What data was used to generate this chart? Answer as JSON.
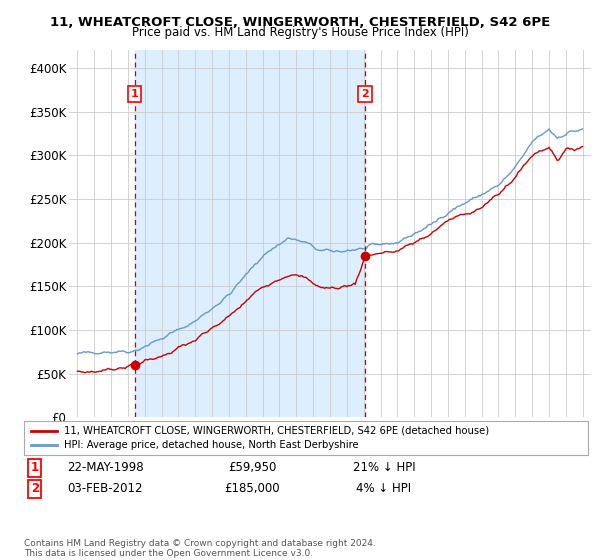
{
  "title_line1": "11, WHEATCROFT CLOSE, WINGERWORTH, CHESTERFIELD, S42 6PE",
  "title_line2": "Price paid vs. HM Land Registry's House Price Index (HPI)",
  "legend_label_red": "11, WHEATCROFT CLOSE, WINGERWORTH, CHESTERFIELD, S42 6PE (detached house)",
  "legend_label_blue": "HPI: Average price, detached house, North East Derbyshire",
  "sale1_date": "22-MAY-1998",
  "sale1_price": 59950,
  "sale1_label": "1",
  "sale1_note": "21% ↓ HPI",
  "sale2_date": "03-FEB-2012",
  "sale2_price": 185000,
  "sale2_label": "2",
  "sale2_note": "4% ↓ HPI",
  "sale1_x": 1998.39,
  "sale2_x": 2012.09,
  "copyright_text": "Contains HM Land Registry data © Crown copyright and database right 2024.\nThis data is licensed under the Open Government Licence v3.0.",
  "ylim_min": 0,
  "ylim_max": 420000,
  "xlim_min": 1994.5,
  "xlim_max": 2025.5,
  "red_color": "#cc0000",
  "blue_color": "#6699cc",
  "shade_color": "#ddeeff",
  "dashed_red_color": "#cc0000",
  "grid_color": "#cccccc",
  "bg_color": "#ffffff",
  "yticks": [
    0,
    50000,
    100000,
    150000,
    200000,
    250000,
    300000,
    350000,
    400000
  ],
  "ytick_labels": [
    "£0",
    "£50K",
    "£100K",
    "£150K",
    "£200K",
    "£250K",
    "£300K",
    "£350K",
    "£400K"
  ]
}
